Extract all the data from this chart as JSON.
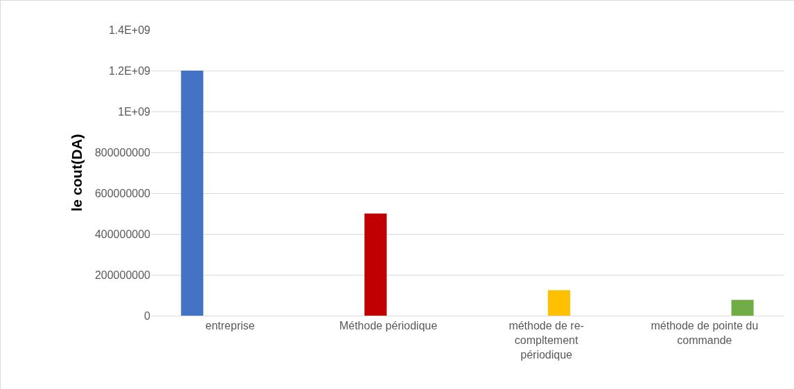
{
  "chart_data": {
    "type": "bar",
    "ylabel": "le cout(DA)",
    "categories": [
      "entreprise",
      "Méthode périodique",
      "méthode de re-compltement périodique",
      "méthode de pointe du commande"
    ],
    "series": [
      {
        "color": "#4472c4",
        "values": [
          1200000000,
          null,
          null,
          null
        ]
      },
      {
        "color": "#c00000",
        "values": [
          null,
          500000000,
          null,
          null
        ]
      },
      {
        "color": "#ffc000",
        "values": [
          null,
          null,
          125000000,
          null
        ]
      },
      {
        "color": "#70ad47",
        "values": [
          null,
          null,
          null,
          77000000
        ]
      }
    ],
    "ylim": [
      0,
      1400000000
    ],
    "yticks": [
      0,
      200000000,
      400000000,
      600000000,
      800000000,
      {
        "value": 1000000000,
        "label": "1E+09"
      },
      {
        "value": 1200000000,
        "label": "1.2E+09"
      },
      {
        "value": 1400000000,
        "label": "1.4E+09"
      }
    ],
    "grid": "y"
  }
}
